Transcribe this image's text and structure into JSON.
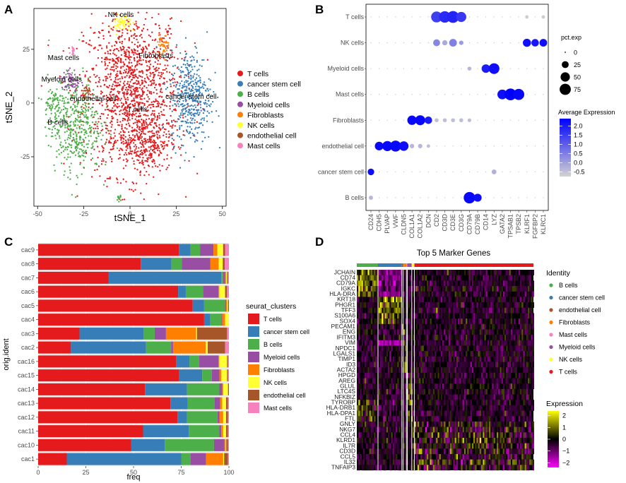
{
  "panels": {
    "a": {
      "letter": "A"
    },
    "b": {
      "letter": "B"
    },
    "c": {
      "letter": "C"
    },
    "d": {
      "letter": "D"
    }
  },
  "colors": {
    "T cells": "#e41a1c",
    "cancer stem cell": "#377eb8",
    "B cells": "#4daf4a",
    "Myeloid cells": "#984ea3",
    "Fibroblasts": "#ff7f00",
    "NK cells": "#ffff33",
    "endothelial cell": "#a65628",
    "Mast cells": "#f781bf"
  },
  "chart_data": [
    {
      "id": "A",
      "type": "scatter",
      "xlabel": "tSNE_1",
      "ylabel": "tSNE_2",
      "xlim": [
        -52,
        52
      ],
      "ylim": [
        -48,
        44
      ],
      "xticks": [
        -50,
        -25,
        0,
        25,
        50
      ],
      "yticks": [
        -25,
        0,
        25
      ],
      "legend": [
        "T cells",
        "cancer stem cell",
        "B cells",
        "Myeloid cells",
        "Fibroblasts",
        "NK cells",
        "endothelial cell",
        "Mast cells"
      ],
      "cluster_labels": [
        {
          "label": "NK cells",
          "x": -5,
          "y": 40
        },
        {
          "label": "Mast cells",
          "x": -36,
          "y": 20
        },
        {
          "label": "Fibroblasts",
          "x": 14,
          "y": 21
        },
        {
          "label": "Myeloid cells",
          "x": -37,
          "y": 10
        },
        {
          "label": "endothelial cell",
          "x": -20,
          "y": 1
        },
        {
          "label": "cancer stem cell",
          "x": 33,
          "y": 2
        },
        {
          "label": "T cells",
          "x": 4,
          "y": -4
        },
        {
          "label": "B cells",
          "x": -39,
          "y": -10
        }
      ],
      "clusters": [
        {
          "name": "T cells",
          "cx": 1,
          "cy": 5,
          "sx": 13,
          "sy": 19,
          "n": 1400
        },
        {
          "name": "T cells",
          "cx": 8,
          "cy": -18,
          "sx": 7,
          "sy": 6,
          "n": 260
        },
        {
          "name": "cancer stem cell",
          "cx": 33,
          "cy": 3,
          "sx": 5.5,
          "sy": 11,
          "n": 420
        },
        {
          "name": "B cells",
          "cx": -30,
          "cy": -10,
          "sx": 7,
          "sy": 11,
          "n": 460
        },
        {
          "name": "B cells",
          "cx": -42,
          "cy": 0,
          "sx": 2.5,
          "sy": 2.5,
          "n": 60
        },
        {
          "name": "B cells",
          "cx": -6,
          "cy": -44,
          "sx": 0.6,
          "sy": 1.0,
          "n": 14
        },
        {
          "name": "Myeloid cells",
          "cx": -32,
          "cy": 10,
          "sx": 2.5,
          "sy": 3,
          "n": 60
        },
        {
          "name": "Fibroblasts",
          "cx": 18,
          "cy": 27,
          "sx": 1.6,
          "sy": 2.2,
          "n": 40
        },
        {
          "name": "NK cells",
          "cx": -4,
          "cy": 37,
          "sx": 2.4,
          "sy": 2.2,
          "n": 70
        },
        {
          "name": "endothelial cell",
          "cx": -23,
          "cy": 5,
          "sx": 1.2,
          "sy": 2,
          "n": 30
        },
        {
          "name": "Mast cells",
          "cx": -31,
          "cy": 24,
          "sx": 0.8,
          "sy": 0.8,
          "n": 14
        }
      ]
    },
    {
      "id": "B",
      "type": "scatter",
      "subtype": "dotplot",
      "rows": [
        "T cells",
        "NK cells",
        "Myeloid cells",
        "Mast cells",
        "Fibroblasts",
        "endothelial cell",
        "cancer stem cell",
        "B cells"
      ],
      "genes": [
        "CD24",
        "CDH5",
        "PLVAP",
        "VWF",
        "CLDN5",
        "COL1A1",
        "COL1A2",
        "DCN",
        "CD2",
        "CD3D",
        "CD3E",
        "CD3G",
        "CD79A",
        "CD79B",
        "CD14",
        "LYZ",
        "GATA2",
        "TPSAB1",
        "TPSB2",
        "KLRF1",
        "FGFBP2",
        "KLRC1"
      ],
      "dots": {
        "T cells": [
          [
            8,
            72,
            1.5
          ],
          [
            9,
            80,
            1.8
          ],
          [
            10,
            86,
            1.9
          ],
          [
            11,
            60,
            1.6
          ],
          [
            19,
            4,
            -0.5
          ],
          [
            21,
            4,
            -0.5
          ]
        ],
        "NK cells": [
          [
            8,
            25,
            0.5
          ],
          [
            9,
            12,
            0.0
          ],
          [
            10,
            32,
            0.6
          ],
          [
            11,
            8,
            0.2
          ],
          [
            19,
            36,
            2.2
          ],
          [
            20,
            30,
            2.1
          ],
          [
            21,
            32,
            2.2
          ]
        ],
        "Myeloid cells": [
          [
            12,
            6,
            -0.2
          ],
          [
            14,
            40,
            2.0
          ],
          [
            15,
            68,
            2.2
          ]
        ],
        "Mast cells": [
          [
            16,
            55,
            2.2
          ],
          [
            17,
            84,
            2.4
          ],
          [
            18,
            74,
            2.3
          ]
        ],
        "Fibroblasts": [
          [
            5,
            50,
            2.3
          ],
          [
            6,
            58,
            2.3
          ],
          [
            7,
            30,
            2.0
          ],
          [
            8,
            6,
            -0.3
          ],
          [
            9,
            6,
            -0.3
          ],
          [
            10,
            6,
            -0.3
          ],
          [
            11,
            6,
            -0.3
          ],
          [
            12,
            5,
            -0.3
          ]
        ],
        "endothelial cell": [
          [
            1,
            42,
            2.3
          ],
          [
            2,
            60,
            2.3
          ],
          [
            3,
            72,
            2.3
          ],
          [
            4,
            52,
            2.2
          ],
          [
            5,
            8,
            -0.2
          ],
          [
            6,
            8,
            -0.2
          ],
          [
            7,
            4,
            -0.3
          ]
        ],
        "cancer stem cell": [
          [
            0,
            22,
            2.2
          ],
          [
            15,
            10,
            -0.1
          ]
        ],
        "B cells": [
          [
            0,
            7,
            -0.2
          ],
          [
            12,
            80,
            2.3
          ],
          [
            13,
            35,
            2.2
          ]
        ]
      },
      "size_legend": {
        "title": "pct.exp",
        "breaks": [
          0,
          25,
          50,
          75
        ]
      },
      "color_legend": {
        "title": "Average Expression",
        "ticks": [
          2.0,
          1.5,
          1.0,
          0.5,
          0.0,
          -0.5
        ],
        "low": "#d3d3d3",
        "high": "#0000ff"
      }
    },
    {
      "id": "C",
      "type": "bar",
      "orientation": "horizontal",
      "stacked": true,
      "xlabel": "freq",
      "ylabel": "orig.ident",
      "xlim": [
        0,
        100
      ],
      "xticks": [
        0,
        25,
        50,
        75,
        100
      ],
      "legend_title": "seurat_clusters",
      "categories": [
        "cac9",
        "cac8",
        "cac7",
        "cac6",
        "cac5",
        "cac4",
        "cac3",
        "cac2",
        "cac16",
        "cac15",
        "cac14",
        "cac13",
        "cac12",
        "cac11",
        "cac10",
        "cac1"
      ],
      "series": [
        {
          "name": "T cells",
          "values": [
            73,
            50,
            37,
            73,
            81,
            87,
            22,
            17,
            72,
            74,
            56,
            69,
            73,
            55,
            53,
            15
          ]
        },
        {
          "name": "cancer stem cell",
          "values": [
            6,
            15,
            59,
            4,
            6,
            3,
            34,
            39,
            7,
            12,
            22,
            9,
            5,
            24,
            19,
            60
          ]
        },
        {
          "name": "B cells",
          "values": [
            5,
            5,
            1,
            9,
            11,
            6,
            6,
            13,
            5,
            5,
            17,
            14,
            16,
            16,
            28,
            5
          ]
        },
        {
          "name": "Myeloid cells",
          "values": [
            7,
            14,
            1,
            8,
            0.5,
            0.5,
            6,
            1,
            10,
            4,
            1.5,
            3,
            1,
            1,
            6,
            8
          ]
        },
        {
          "name": "Fibroblasts",
          "values": [
            2,
            4,
            0.5,
            0.5,
            0.5,
            1.5,
            16,
            17,
            0.5,
            1,
            0.5,
            1,
            2,
            1,
            0.5,
            9
          ]
        },
        {
          "name": "NK cells",
          "values": [
            3,
            2,
            0.5,
            3,
            0.5,
            2,
            0.5,
            1,
            4,
            3,
            2.5,
            2,
            1.5,
            1.5,
            0.5,
            0.5
          ]
        },
        {
          "name": "endothelial cell",
          "values": [
            1,
            1,
            0.5,
            1,
            0.5,
            0,
            16,
            9,
            0.5,
            0.5,
            0.5,
            1,
            1,
            1,
            1,
            2
          ]
        },
        {
          "name": "Mast cells",
          "values": [
            2,
            2,
            0.5,
            1,
            0,
            0,
            1,
            2,
            0.5,
            0.5,
            0,
            0.5,
            0.5,
            0.5,
            0.5,
            0.5
          ]
        }
      ]
    },
    {
      "id": "D",
      "type": "heatmap",
      "title": "Top 5 Marker Genes",
      "genes": [
        "JCHAIN",
        "CD74",
        "CD79A",
        "IGKC",
        "HLA-DRA",
        "KRT18",
        "PHGR1",
        "TFF3",
        "S100A6",
        "SOX4",
        "PECAM1",
        "ENG",
        "IFITM3",
        "VIM",
        "NPDC1",
        "LGALS1",
        "TIMP1",
        "ID3",
        "ACTA2",
        "HPGD",
        "AREG",
        "GLUL",
        "LTC4S",
        "NFKBIZ",
        "TYROBP",
        "HLA-DRB1",
        "HLA-DPA1",
        "FTL",
        "GNLY",
        "NKG7",
        "CCL4",
        "KLRD1",
        "IL7R",
        "CD3D",
        "CCL5",
        "IL32",
        "TNFAIP3"
      ],
      "identity_order": [
        "B cells",
        "cancer stem cell",
        "endothelial cell",
        "Fibroblasts",
        "Mast cells",
        "Myeloid cells",
        "NK cells",
        "T cells"
      ],
      "identity_fractions": [
        0.12,
        0.135,
        0.008,
        0.018,
        0.005,
        0.025,
        0.015,
        0.674
      ],
      "identity_legend_title": "Identity",
      "expression_legend": {
        "title": "Expression",
        "ticks": [
          2,
          1,
          0,
          -1,
          -2
        ],
        "low": "#ff00ff",
        "mid": "#000000",
        "high": "#ffff00"
      }
    }
  ]
}
